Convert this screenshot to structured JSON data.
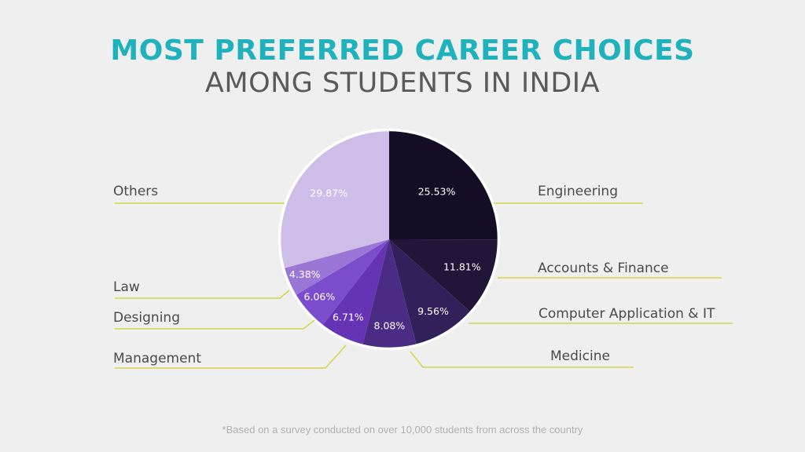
{
  "header": {
    "title": "MOST PREFERRED CAREER CHOICES",
    "subtitle": "AMONG STUDENTS IN INDIA"
  },
  "footnote": "*Based on a survey conducted on over 10,000 students from across the  country",
  "colors": {
    "title": "#1fb2bd",
    "leader_line": "#d8d44a",
    "pie_border": "#ffffff"
  },
  "chart_data": {
    "type": "pie",
    "title": "MOST PREFERRED CAREER CHOICES",
    "subtitle": "AMONG STUDENTS IN INDIA",
    "slices": [
      {
        "label": "Engineering",
        "value": 25.53,
        "value_label": "25.53%",
        "color": "#150d24"
      },
      {
        "label": "Accounts & Finance",
        "value": 11.81,
        "value_label": "11.81%",
        "color": "#211538"
      },
      {
        "label": "Computer Application & IT",
        "value": 9.56,
        "value_label": "9.56%",
        "color": "#31205a"
      },
      {
        "label": "Medicine",
        "value": 8.08,
        "value_label": "8.08%",
        "color": "#4a2c85"
      },
      {
        "label": "Management",
        "value": 6.71,
        "value_label": "6.71%",
        "color": "#6534b4"
      },
      {
        "label": "Designing",
        "value": 6.06,
        "value_label": "6.06%",
        "color": "#7b4dcd"
      },
      {
        "label": "Law",
        "value": 4.38,
        "value_label": "4.38%",
        "color": "#9a76d6"
      },
      {
        "label": "Others",
        "value": 29.87,
        "value_label": "29.87%",
        "color": "#cebde8"
      }
    ]
  }
}
